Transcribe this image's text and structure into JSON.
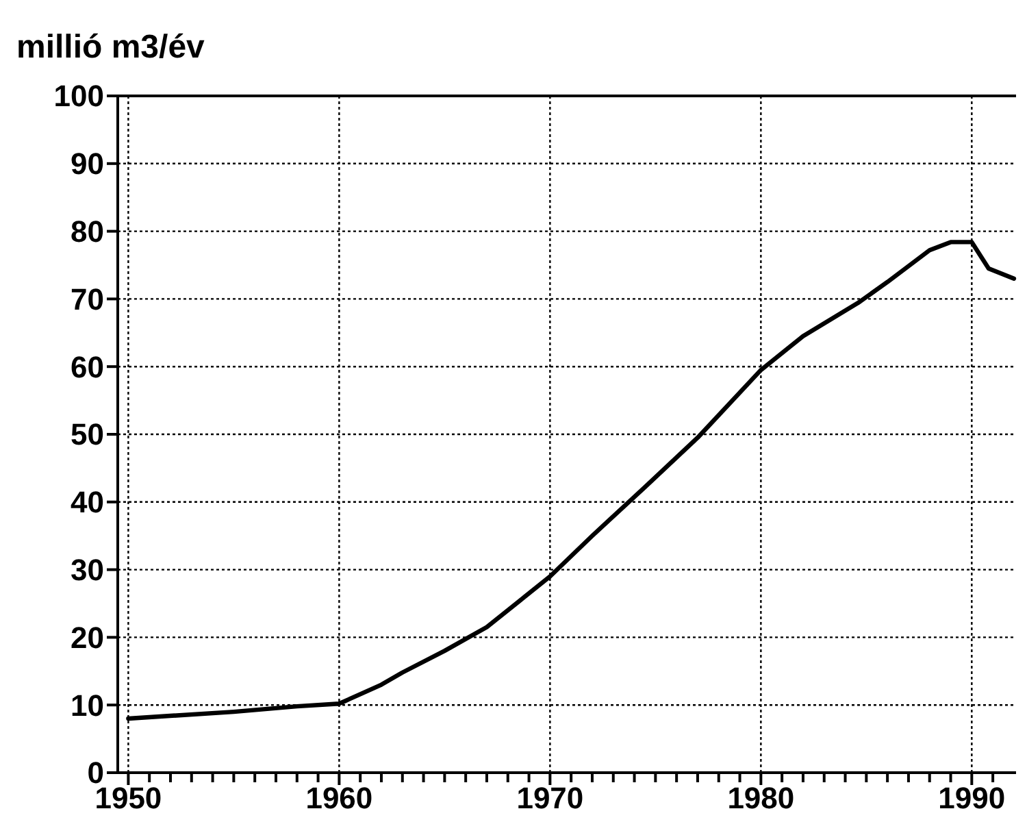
{
  "chart_data": {
    "type": "line",
    "ylabel": "millió m3/év",
    "x": [
      1950,
      1955,
      1958,
      1960,
      1962,
      1963,
      1965,
      1967,
      1970,
      1972,
      1974.5,
      1977,
      1980,
      1982,
      1984.6,
      1986,
      1988,
      1989,
      1990,
      1990.8,
      1992
    ],
    "series": [
      {
        "color": "#000000",
        "values": [
          8,
          9,
          9.8,
          10.2,
          13,
          14.8,
          18,
          21.5,
          29,
          35,
          42.2,
          49.5,
          59.5,
          64.5,
          69.4,
          72.5,
          77.2,
          78.4,
          78.4,
          74.5,
          73
        ]
      }
    ],
    "xlim": [
      1949.5,
      1992.1
    ],
    "xticks": [
      1950,
      {
        "value": 1951,
        "label": null
      },
      {
        "value": 1952,
        "label": null
      },
      {
        "value": 1953,
        "label": null
      },
      {
        "value": 1954,
        "label": null
      },
      {
        "value": 1955,
        "label": null
      },
      {
        "value": 1956,
        "label": null
      },
      {
        "value": 1957,
        "label": null
      },
      {
        "value": 1958,
        "label": null
      },
      {
        "value": 1959,
        "label": null
      },
      1960,
      {
        "value": 1961,
        "label": null
      },
      {
        "value": 1962,
        "label": null
      },
      {
        "value": 1963,
        "label": null
      },
      {
        "value": 1964,
        "label": null
      },
      {
        "value": 1965,
        "label": null
      },
      {
        "value": 1966,
        "label": null
      },
      {
        "value": 1967,
        "label": null
      },
      {
        "value": 1968,
        "label": null
      },
      {
        "value": 1969,
        "label": null
      },
      1970,
      {
        "value": 1971,
        "label": null
      },
      {
        "value": 1972,
        "label": null
      },
      {
        "value": 1973,
        "label": null
      },
      {
        "value": 1974,
        "label": null
      },
      {
        "value": 1975,
        "label": null
      },
      {
        "value": 1976,
        "label": null
      },
      {
        "value": 1977,
        "label": null
      },
      {
        "value": 1978,
        "label": null
      },
      {
        "value": 1979,
        "label": null
      },
      1980,
      {
        "value": 1981,
        "label": null
      },
      {
        "value": 1982,
        "label": null
      },
      {
        "value": 1983,
        "label": null
      },
      {
        "value": 1984,
        "label": null
      },
      {
        "value": 1985,
        "label": null
      },
      {
        "value": 1986,
        "label": null
      },
      {
        "value": 1987,
        "label": null
      },
      {
        "value": 1988,
        "label": null
      },
      {
        "value": 1989,
        "label": null
      },
      1990,
      {
        "value": 1991,
        "label": null
      }
    ],
    "ylim": [
      0,
      100
    ],
    "yticks": [
      0,
      10,
      20,
      30,
      40,
      50,
      60,
      70,
      80,
      90,
      100
    ],
    "grid": true,
    "line_style": "solid",
    "marker": "none"
  }
}
